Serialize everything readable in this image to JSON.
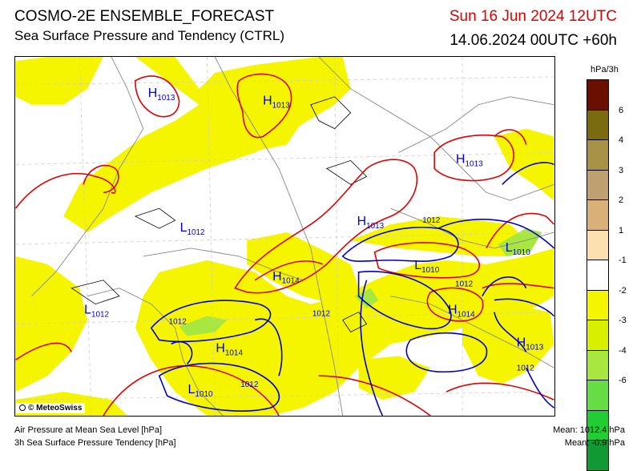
{
  "header": {
    "title": "COSMO-2E ENSEMBLE_FORECAST",
    "subtitle": "Sea Surface Pressure and Tendency (CTRL)",
    "valid_time": "Sun 16 Jun 2024 12UTC",
    "run_info": "14.06.2024 00UTC +60h",
    "valid_color": "#e00000"
  },
  "map": {
    "copyright": "© MeteoSwiss",
    "pressure_labels": [
      {
        "type": "H",
        "value": "1013",
        "color": "#0000cc"
      },
      {
        "type": "H",
        "value": "1013",
        "color": "#0000cc"
      },
      {
        "type": "H",
        "value": "1013",
        "color": "#0000cc"
      },
      {
        "type": "H",
        "value": "1013",
        "color": "#0000cc"
      },
      {
        "type": "H",
        "value": "1014",
        "color": "#0000cc"
      },
      {
        "type": "H",
        "value": "1014",
        "color": "#0000cc"
      },
      {
        "type": "H",
        "value": "1014",
        "color": "#0000cc"
      },
      {
        "type": "H",
        "value": "1013",
        "color": "#0000cc"
      },
      {
        "type": "L",
        "value": "1012",
        "color": "#0000cc"
      },
      {
        "type": "L",
        "value": "1010",
        "color": "#0000cc"
      },
      {
        "type": "L",
        "value": "1010",
        "color": "#0000cc"
      },
      {
        "type": "L",
        "value": "1012",
        "color": "#0000cc"
      },
      {
        "type": "L",
        "value": "1010",
        "color": "#0000cc"
      }
    ],
    "contour_labels": [
      "1012",
      "1012",
      "1012",
      "1012",
      "1012",
      "1012"
    ],
    "colors": {
      "isobar_high": "#e00000",
      "isobar_low": "#0000cc",
      "border": "#888888",
      "coast": "#000000"
    }
  },
  "legend": {
    "unit": "hPa/3h",
    "swatches": [
      "#6b0f00",
      "#7a6a10",
      "#a89248",
      "#bfa070",
      "#d8b078",
      "#fde0b0",
      "#ffffff",
      "#f5f500",
      "#d8f000",
      "#a8e640",
      "#66dd44",
      "#22cc33",
      "#119933"
    ],
    "ticks": [
      "6",
      "4",
      "3",
      "2",
      "1",
      "-1",
      "-2",
      "-3",
      "-4",
      "-6"
    ]
  },
  "footer": {
    "line1": "Air Pressure at Mean Sea Level [hPa]",
    "line2": "3h Sea Surface Pressure Tendency [hPa]",
    "mean1": "Mean: 1012.4 hPa",
    "mean2": "Mean:   -0.9 hPa"
  }
}
